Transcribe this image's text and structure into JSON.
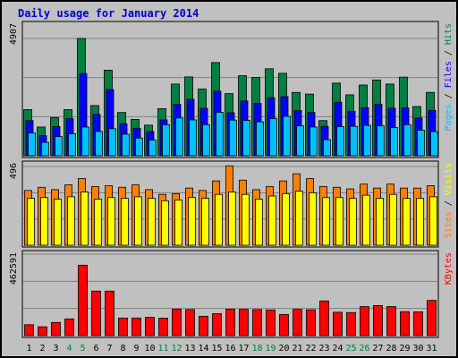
{
  "chart_data": {
    "title": "Daily usage for January 2014",
    "days": [
      "1",
      "2",
      "3",
      "4",
      "5",
      "6",
      "7",
      "8",
      "9",
      "10",
      "11",
      "12",
      "13",
      "14",
      "15",
      "16",
      "17",
      "18",
      "19",
      "20",
      "21",
      "22",
      "23",
      "24",
      "25",
      "26",
      "27",
      "28",
      "29",
      "30",
      "31"
    ],
    "weekend_days": [
      "4",
      "5",
      "11",
      "12",
      "18",
      "19",
      "25",
      "26"
    ],
    "colors": {
      "hits": "#008040",
      "files": "#0000ff",
      "pages": "#00c0ff",
      "visits": "#ff8000",
      "sites": "#ffff00",
      "kbytes": "#ff0000",
      "weekend_label": "#008040",
      "weekday_label": "#000000"
    },
    "panels": [
      {
        "type": "bar",
        "max_label": "4907",
        "ymax": 4907,
        "series": [
          {
            "name": "Hits",
            "key": "hits",
            "values": [
              1930,
              1200,
              1600,
              1930,
              4907,
              2100,
              3580,
              1810,
              1520,
              1280,
              1970,
              3000,
              3300,
              2790,
              3900,
              2600,
              3350,
              3280,
              3640,
              3450,
              2650,
              2580,
              1470,
              3040,
              2550,
              2960,
              3170,
              3000,
              3290,
              2060,
              2650
            ]
          },
          {
            "name": "Files",
            "key": "files",
            "values": [
              1470,
              840,
              1220,
              1550,
              3440,
              1730,
              2770,
              1340,
              1150,
              1010,
              1500,
              2150,
              2360,
              1980,
              2700,
              1800,
              2290,
              2190,
              2430,
              2470,
              1890,
              1810,
              1230,
              2240,
              1860,
              2010,
              2150,
              1990,
              2000,
              1580,
              1900
            ]
          },
          {
            "name": "Pages",
            "key": "pages",
            "values": [
              950,
              560,
              800,
              920,
              1200,
              1020,
              1130,
              900,
              740,
              660,
              1300,
              1580,
              1500,
              1300,
              1820,
              1490,
              1480,
              1420,
              1550,
              1650,
              1250,
              1200,
              670,
              1220,
              1230,
              1270,
              1250,
              1180,
              1300,
              1070,
              1010
            ]
          }
        ],
        "axis_label_parts": [
          {
            "text": "Pages",
            "key": "pages"
          },
          {
            "text": " / ",
            "key": "sep"
          },
          {
            "text": "Files",
            "key": "files"
          },
          {
            "text": " / ",
            "key": "sep"
          },
          {
            "text": "Hits",
            "key": "hits"
          }
        ]
      },
      {
        "type": "bar",
        "max_label": "496",
        "ymax": 496,
        "series": [
          {
            "name": "Visits",
            "key": "visits",
            "values": [
              345,
              365,
              350,
              380,
              420,
              370,
              375,
              365,
              380,
              350,
              320,
              325,
              360,
              345,
              405,
              500,
              410,
              350,
              370,
              405,
              450,
              420,
              370,
              365,
              355,
              385,
              360,
              385,
              360,
              360,
              375
            ]
          },
          {
            "name": "Sites",
            "key": "sites",
            "values": [
              295,
              300,
              290,
              305,
              335,
              290,
              300,
              295,
              305,
              295,
              280,
              285,
              300,
              295,
              320,
              335,
              320,
              290,
              310,
              325,
              340,
              330,
              300,
              300,
              295,
              315,
              295,
              320,
              295,
              295,
              305
            ]
          }
        ],
        "axis_label_parts": [
          {
            "text": "Sites",
            "key": "visits"
          },
          {
            "text": " / ",
            "key": "sep"
          },
          {
            "text": "Visits",
            "key": "sites"
          }
        ]
      },
      {
        "type": "bar",
        "max_label": "462591",
        "ymax": 462591,
        "series": [
          {
            "name": "KBytes",
            "key": "kbytes",
            "values": [
              62000,
              50000,
              75000,
              95000,
              400000,
              253000,
              253000,
              100000,
              100000,
              104000,
              99000,
              151000,
              148000,
              110000,
              125000,
              150000,
              149000,
              148000,
              146000,
              120000,
              149000,
              147000,
              197000,
              133000,
              131000,
              165000,
              171000,
              165000,
              136000,
              135000,
              200000
            ]
          }
        ],
        "axis_label_parts": [
          {
            "text": "KBytes",
            "key": "kbytes"
          }
        ]
      }
    ]
  }
}
